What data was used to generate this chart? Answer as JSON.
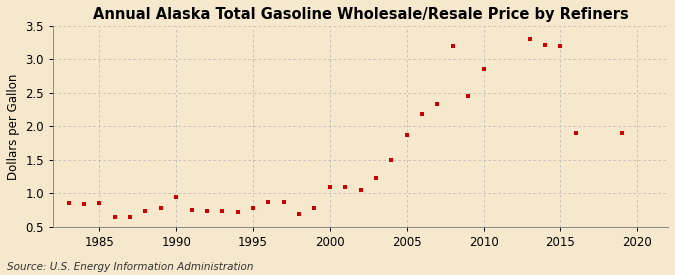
{
  "title": "Annual Alaska Total Gasoline Wholesale/Resale Price by Refiners",
  "ylabel": "Dollars per Gallon",
  "source": "Source: U.S. Energy Information Administration",
  "background_color": "#f5e8cc",
  "plot_background_color": "#f5e8cc",
  "marker_color": "#cc0000",
  "years": [
    1983,
    1984,
    1985,
    1986,
    1987,
    1988,
    1989,
    1990,
    1991,
    1992,
    1993,
    1994,
    1995,
    1996,
    1997,
    1998,
    1999,
    2000,
    2001,
    2002,
    2003,
    2004,
    2005,
    2006,
    2007,
    2008,
    2009,
    2010,
    2013,
    2014,
    2015,
    2016,
    2019
  ],
  "values": [
    0.86,
    0.84,
    0.86,
    0.65,
    0.65,
    0.73,
    0.78,
    0.94,
    0.75,
    0.73,
    0.73,
    0.72,
    0.78,
    0.87,
    0.87,
    0.69,
    0.78,
    1.1,
    1.1,
    1.05,
    1.23,
    1.5,
    1.87,
    2.18,
    2.33,
    3.2,
    2.46,
    2.85,
    3.3,
    3.21,
    3.2,
    1.9,
    1.9
  ],
  "xlim": [
    1982,
    2022
  ],
  "ylim": [
    0.5,
    3.5
  ],
  "xticks": [
    1985,
    1990,
    1995,
    2000,
    2005,
    2010,
    2015,
    2020
  ],
  "yticks": [
    0.5,
    1.0,
    1.5,
    2.0,
    2.5,
    3.0,
    3.5
  ],
  "grid_color": "#bbbbbb",
  "title_fontsize": 10.5,
  "label_fontsize": 8.5,
  "tick_fontsize": 8.5,
  "source_fontsize": 7.5
}
